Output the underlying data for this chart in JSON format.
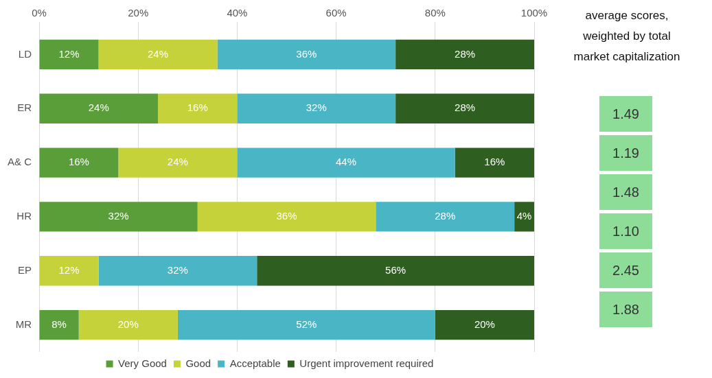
{
  "chart_data": [
    {
      "type": "bar",
      "orientation": "horizontal",
      "stacked": true,
      "categories": [
        "LD",
        "ER",
        "A& C",
        "HR",
        "EP",
        "MR"
      ],
      "series": [
        {
          "name": "Very Good",
          "color": "#5a9e3a",
          "values": [
            12,
            24,
            16,
            32,
            null,
            8
          ],
          "value_labels": [
            "12%",
            "24%",
            "16%",
            "32%",
            null,
            "8%"
          ]
        },
        {
          "name": "Good",
          "color": "#c5d23a",
          "values": [
            24,
            16,
            24,
            36,
            12,
            20
          ],
          "value_labels": [
            "24%",
            "16%",
            "24%",
            "36%",
            "12%",
            "20%"
          ]
        },
        {
          "name": "Acceptable",
          "color": "#4ab5c4",
          "values": [
            36,
            32,
            44,
            28,
            32,
            52
          ],
          "value_labels": [
            "36%",
            "32%",
            "44%",
            "28%",
            "32%",
            "52%"
          ]
        },
        {
          "name": "Urgent improvement required",
          "color": "#2e5e20",
          "values": [
            28,
            28,
            16,
            4,
            56,
            20
          ],
          "value_labels": [
            "28%",
            "28%",
            "16%",
            "4%",
            "56%",
            "20%"
          ]
        }
      ],
      "xlim": [
        0,
        100
      ],
      "xticks": [
        {
          "value": 0,
          "label": "0%"
        },
        {
          "value": 20,
          "label": "20%"
        },
        {
          "value": 40,
          "label": "40%"
        },
        {
          "value": 60,
          "label": "60%"
        },
        {
          "value": 80,
          "label": "80%"
        },
        {
          "value": 100,
          "label": "100%"
        }
      ],
      "grid": "x",
      "legend": "bottom"
    },
    {
      "type": "other",
      "title": "average scores,\nweighted by total\nmarket capitalization",
      "annotations": [
        "1.49",
        "1.19",
        "1.48",
        "1.10",
        "2.45",
        "1.88"
      ]
    }
  ]
}
